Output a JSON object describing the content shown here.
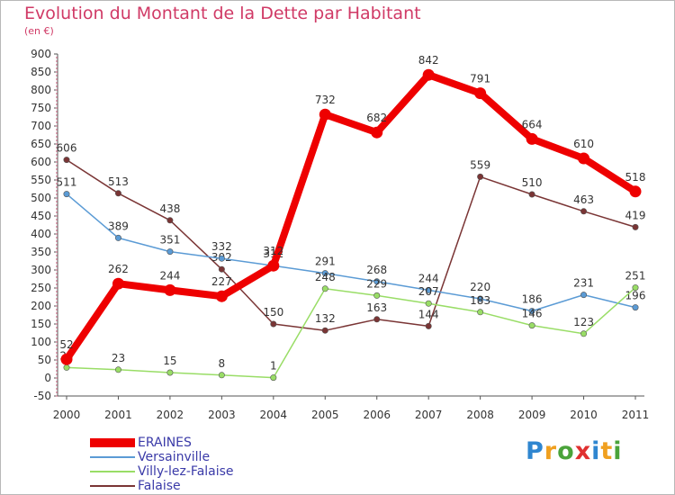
{
  "title": "Evolution du Montant de la Dette par Habitant",
  "subtitle": "(en €)",
  "logo": {
    "text": "Proxiti",
    "colors": [
      "#2f86d0",
      "#f0a020",
      "#4aa33a",
      "#e03030",
      "#2f86d0",
      "#f0a020",
      "#4aa33a"
    ]
  },
  "chart_data": {
    "type": "line",
    "x": [
      "2000",
      "2001",
      "2002",
      "2003",
      "2004",
      "2005",
      "2006",
      "2007",
      "2008",
      "2009",
      "2010",
      "2011"
    ],
    "ylim": [
      -50,
      900
    ],
    "yticks": [
      -50,
      0,
      50,
      100,
      150,
      200,
      250,
      300,
      350,
      400,
      450,
      500,
      550,
      600,
      650,
      700,
      750,
      800,
      850,
      900
    ],
    "grid": false,
    "legend_position": "bottom-left",
    "series": [
      {
        "name": "ERAINES",
        "color": "#ee0000",
        "values": [
          52,
          262,
          244,
          227,
          312,
          732,
          682,
          842,
          791,
          664,
          610,
          518
        ]
      },
      {
        "name": "Versainville",
        "color": "#5b9bd5",
        "values": [
          511,
          389,
          351,
          332,
          312,
          291,
          268,
          244,
          220,
          186,
          231,
          196
        ]
      },
      {
        "name": "Villy-lez-Falaise",
        "color": "#99dd66",
        "values": [
          29,
          23,
          15,
          8,
          1,
          248,
          229,
          207,
          183,
          146,
          123,
          251
        ]
      },
      {
        "name": "Falaise",
        "color": "#7a3535",
        "values": [
          606,
          513,
          438,
          302,
          150,
          132,
          163,
          144,
          559,
          510,
          463,
          419
        ]
      }
    ]
  }
}
